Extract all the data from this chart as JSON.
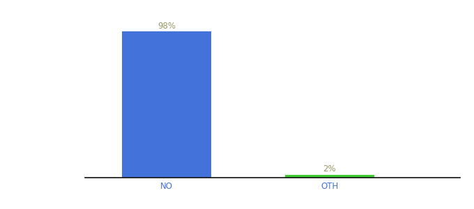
{
  "categories": [
    "NO",
    "OTH"
  ],
  "values": [
    98,
    2
  ],
  "bar_colors": [
    "#4472db",
    "#3ecc32"
  ],
  "labels": [
    "98%",
    "2%"
  ],
  "label_color": "#999966",
  "ylim": [
    0,
    108
  ],
  "background_color": "#ffffff",
  "axis_line_color": "#111111",
  "tick_color": "#4472db",
  "label_fontsize": 8.5,
  "tick_fontsize": 8.5,
  "bar_width": 0.55,
  "xlim": [
    -0.5,
    1.8
  ]
}
